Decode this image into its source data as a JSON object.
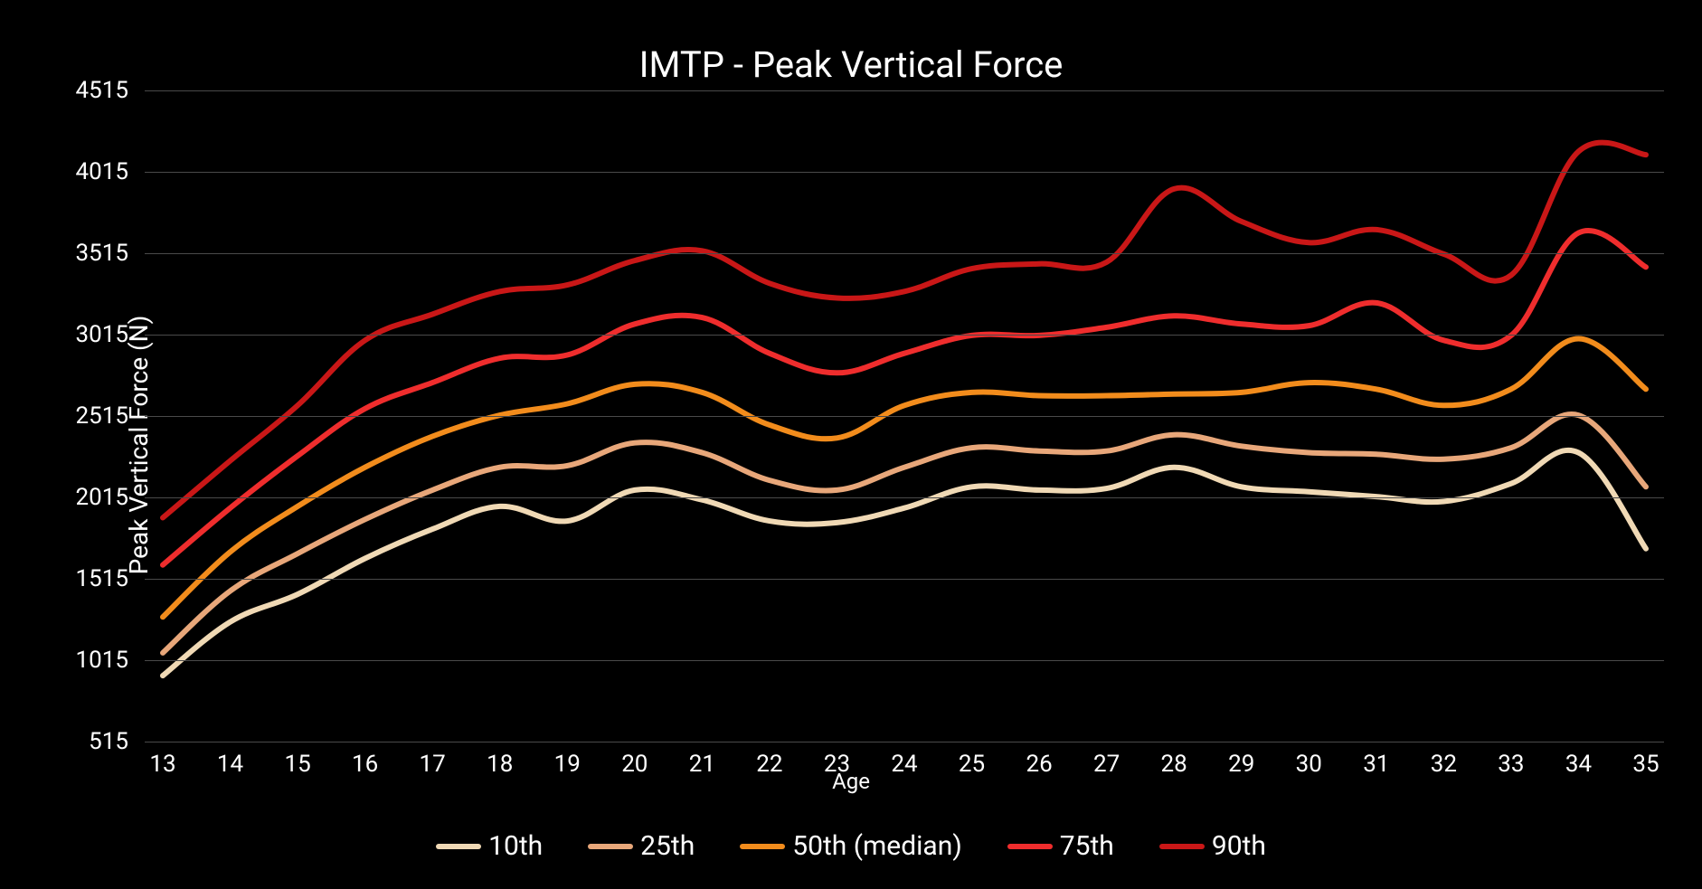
{
  "chart": {
    "type": "line",
    "title": "IMTP - Peak Vertical Force",
    "title_fontsize": 40,
    "x_axis": {
      "label": "Age",
      "label_fontsize": 24,
      "ticks": [
        13,
        14,
        15,
        16,
        17,
        18,
        19,
        20,
        21,
        22,
        23,
        24,
        25,
        26,
        27,
        28,
        29,
        30,
        31,
        32,
        33,
        34,
        35
      ],
      "xlim": [
        13,
        35
      ]
    },
    "y_axis": {
      "label": "Peak Vertical Force (N)",
      "label_fontsize": 28,
      "ticks": [
        515,
        1015,
        1515,
        2015,
        2515,
        3015,
        3515,
        4015,
        4515
      ],
      "ylim": [
        515,
        4515
      ]
    },
    "background_color": "#000000",
    "grid_color": "#4a4a4a",
    "line_width": 6,
    "smooth": true,
    "series": [
      {
        "name": "10th",
        "color": "#f0d9b5",
        "values": [
          920,
          1250,
          1420,
          1640,
          1820,
          1960,
          1870,
          2060,
          2000,
          1870,
          1860,
          1950,
          2080,
          2060,
          2070,
          2200,
          2080,
          2050,
          2020,
          1990,
          2100,
          2290,
          1700
        ]
      },
      {
        "name": "25th",
        "color": "#e8a77a",
        "values": [
          1060,
          1440,
          1670,
          1880,
          2060,
          2200,
          2210,
          2350,
          2290,
          2120,
          2060,
          2200,
          2320,
          2300,
          2300,
          2400,
          2330,
          2290,
          2280,
          2250,
          2320,
          2520,
          2080
        ]
      },
      {
        "name": "50th (median)",
        "color": "#f28c1c",
        "values": [
          1280,
          1680,
          1960,
          2200,
          2390,
          2520,
          2590,
          2710,
          2660,
          2460,
          2380,
          2580,
          2660,
          2640,
          2640,
          2650,
          2660,
          2720,
          2680,
          2580,
          2680,
          2990,
          2680
        ]
      },
      {
        "name": "75th",
        "color": "#ef2d2d",
        "values": [
          1600,
          1950,
          2270,
          2560,
          2720,
          2870,
          2890,
          3080,
          3120,
          2900,
          2780,
          2900,
          3010,
          3010,
          3060,
          3130,
          3080,
          3070,
          3210,
          2980,
          3010,
          3640,
          3430
        ]
      },
      {
        "name": "90th",
        "color": "#c91717",
        "values": [
          1890,
          2240,
          2580,
          2980,
          3140,
          3280,
          3320,
          3470,
          3530,
          3330,
          3240,
          3280,
          3420,
          3450,
          3460,
          3910,
          3710,
          3580,
          3660,
          3510,
          3380,
          4140,
          4120
        ]
      }
    ],
    "legend_fontsize": 30
  }
}
